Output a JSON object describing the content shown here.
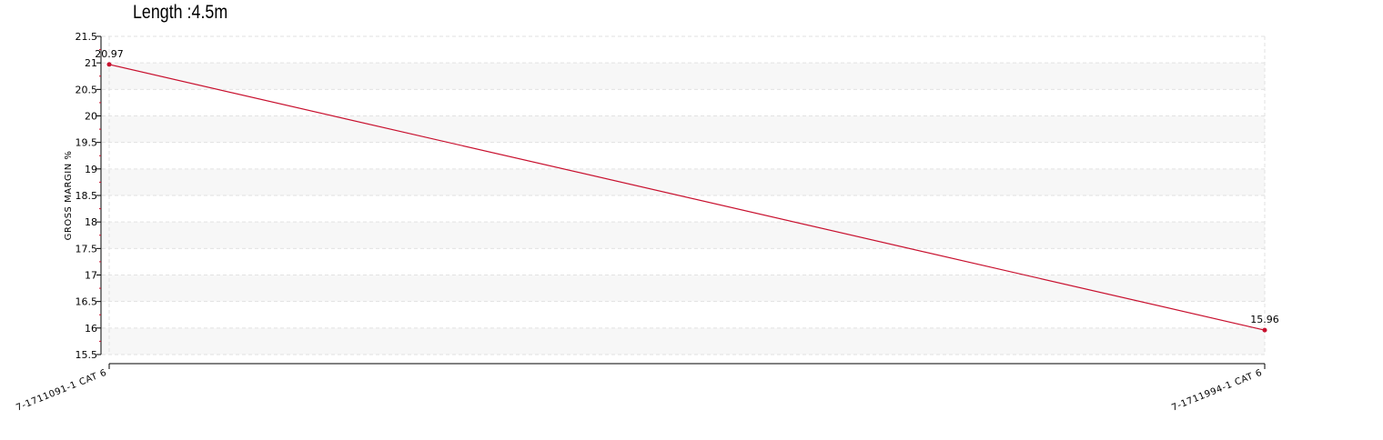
{
  "chart_data": {
    "type": "line",
    "title": "Length :4.5m",
    "xlabel": "",
    "ylabel": "GROSS MARGIN %",
    "categories": [
      "7-1711091-1 CAT 6",
      "7-1711994-1 CAT 6"
    ],
    "series": [
      {
        "values": [
          20.97,
          15.96
        ],
        "color": "#c8102e",
        "labels": [
          "20.97",
          "15.96"
        ]
      }
    ],
    "ylim": [
      15.5,
      21.5
    ],
    "ytick_step": 0.5,
    "yticks": [
      "15.5",
      "16",
      "16.5",
      "17",
      "17.5",
      "18",
      "18.5",
      "19",
      "19.5",
      "20",
      "20.5",
      "21",
      "21.5"
    ],
    "grid": true,
    "band_color": "#f7f7f7",
    "grid_color": "#e2e2e2",
    "axis_color": "#000000",
    "tick_mark_color": "#c8102e"
  }
}
